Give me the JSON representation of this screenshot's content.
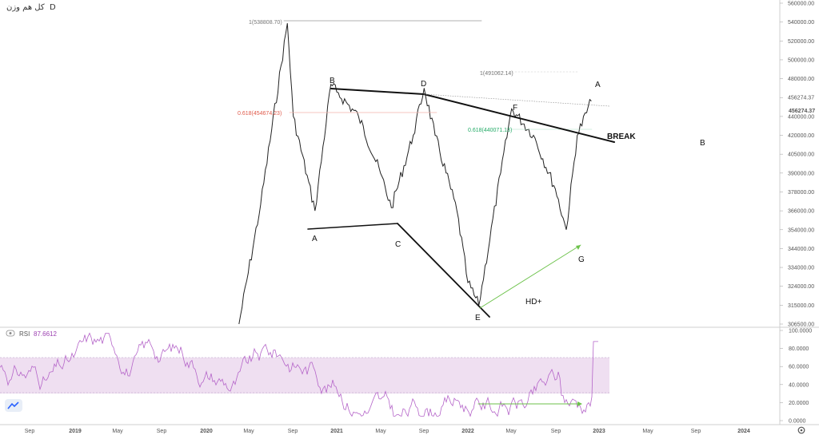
{
  "header": {
    "symbol": "کل هم وزن",
    "interval": "D"
  },
  "colors": {
    "price": "#222222",
    "fib_red": "#e05a4a",
    "fib_green": "#22aa66",
    "rsi_line": "#b565c9",
    "rsi_band": "#ecd9ee",
    "rsi_value": "#9b3fb0",
    "divergence": "#6cc24a",
    "grid": "#eeeeee"
  },
  "rsi": {
    "label": "RSI",
    "value": "87.6612"
  },
  "chart_data": [
    {
      "type": "line",
      "name": "price",
      "y_ticks": [
        "560000.00",
        "540000.00",
        "520000.00",
        "500000.00",
        "480000.00",
        "456274.37",
        "440000.00",
        "420000.00",
        "405000.00",
        "390000.00",
        "378000.00",
        "366000.00",
        "354000.00",
        "344000.00",
        "334000.00",
        "324000.00",
        "315000.00",
        "306500.00"
      ],
      "y_tick_values": [
        560000,
        540000,
        520000,
        500000,
        480000,
        460000,
        440000,
        420000,
        405000,
        390000,
        378000,
        366000,
        354000,
        344000,
        334000,
        324000,
        315000,
        306500
      ],
      "x_ticks": [
        "Sep",
        "2019",
        "May",
        "Sep",
        "2020",
        "May",
        "Sep",
        "2021",
        "May",
        "Sep",
        "2022",
        "May",
        "Sep",
        "2023",
        "May",
        "Sep",
        "2024"
      ],
      "x": [
        "2020-04",
        "2020-06",
        "2020-08-15",
        "2020-09",
        "2020-11",
        "2020-12-15",
        "2021-01",
        "2021-03",
        "2021-05",
        "2021-06",
        "2021-08",
        "2021-09",
        "2021-10",
        "2021-12",
        "2022-01",
        "2022-02",
        "2022-04",
        "2022-05",
        "2022-07",
        "2022-09",
        "2022-10",
        "2022-11",
        "2022-12-10"
      ],
      "y": [
        306500,
        370000,
        538808.7,
        440000,
        366000,
        474000,
        466000,
        440000,
        390000,
        368000,
        420000,
        470000,
        420000,
        366000,
        326000,
        315000,
        390000,
        448000,
        420000,
        380000,
        354000,
        420000,
        456274.37
      ],
      "last_value": "456274.37",
      "annotations": {
        "fib_top": "1(538808.70)",
        "fib_red": "0.618(454674.23)",
        "fib_mid": "1(491062.14)",
        "fib_green": "0.618(440071.13)",
        "pattern": "HD+",
        "break": "BREAK",
        "wave_labels": [
          "A",
          "B",
          "C",
          "D",
          "E",
          "F",
          "G",
          "A",
          "B"
        ]
      }
    },
    {
      "type": "line",
      "name": "RSI",
      "y_ticks": [
        "100.0000",
        "80.0000",
        "60.0000",
        "40.0000",
        "20.0000",
        "0.0000"
      ],
      "y_tick_values": [
        100,
        80,
        60,
        40,
        20,
        0
      ],
      "band": [
        30,
        70
      ],
      "last_value": "87.6612"
    }
  ]
}
